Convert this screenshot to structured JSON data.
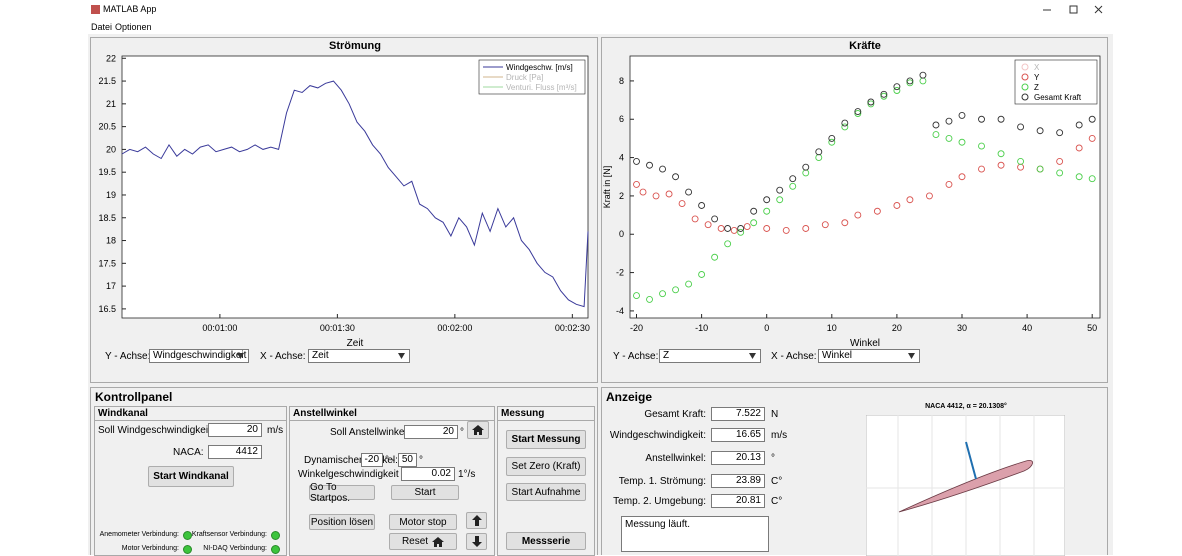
{
  "window": {
    "title": "MATLAB App"
  },
  "menu": [
    "Datei",
    "Optionen"
  ],
  "chart_data": [
    {
      "type": "line",
      "title": "Strömung",
      "xlabel": "Zeit",
      "x": [
        35,
        37,
        39,
        41,
        43,
        45,
        47,
        49,
        51,
        53,
        55,
        57,
        59,
        61,
        63,
        65,
        67,
        69,
        71,
        73,
        75,
        77,
        79,
        81,
        83,
        85,
        87,
        89,
        91,
        93,
        95,
        97,
        99,
        101,
        103,
        105,
        107,
        109,
        111,
        113,
        115,
        117,
        119,
        121,
        123,
        125,
        127,
        129,
        131,
        133,
        135,
        137,
        139,
        141,
        143,
        145,
        147,
        149,
        151,
        153,
        154
      ],
      "series": [
        {
          "name": "Windgeschw. [m/s]",
          "color": "#3a3a9a",
          "values": [
            19.9,
            20.0,
            19.95,
            20.05,
            19.9,
            19.8,
            20.1,
            19.85,
            20.0,
            19.9,
            20.05,
            20.1,
            19.95,
            20.0,
            20.05,
            19.95,
            20.0,
            20.1,
            20.0,
            20.05,
            20.0,
            20.8,
            21.3,
            21.25,
            21.4,
            21.35,
            21.45,
            21.5,
            21.3,
            21.0,
            20.6,
            20.4,
            20.1,
            19.9,
            19.6,
            19.4,
            19.2,
            19.3,
            18.8,
            18.7,
            18.5,
            18.4,
            18.1,
            18.5,
            18.3,
            17.9,
            18.6,
            18.2,
            18.7,
            18.3,
            18.5,
            18.0,
            17.8,
            17.5,
            17.3,
            17.2,
            16.9,
            16.7,
            16.6,
            16.55,
            18.2
          ]
        },
        {
          "name": "Druck [Pa]",
          "color": "#d2b48c",
          "visible": false
        },
        {
          "name": "Venturi. Fluss [m³/s]",
          "color": "#9fd89f",
          "visible": false
        }
      ],
      "xlim": [
        35,
        154
      ],
      "xticks": [
        {
          "value": 60,
          "label": "00:01:00"
        },
        {
          "value": 90,
          "label": "00:01:30"
        },
        {
          "value": 120,
          "label": "00:02:00"
        },
        {
          "value": 150,
          "label": "00:02:30"
        }
      ],
      "ylim": [
        16.3,
        22.05
      ],
      "yticks": [
        16.5,
        17,
        17.5,
        18,
        18.5,
        19,
        19.5,
        20,
        20.5,
        21,
        21.5,
        22
      ],
      "legend": "northeast"
    },
    {
      "type": "scatter",
      "title": "Kräfte",
      "xlabel": "Winkel",
      "ylabel": "Kraft in [N]",
      "series": [
        {
          "name": "X",
          "color": "#f2c4c4",
          "visible": false
        },
        {
          "name": "Y",
          "color": "#d9534f",
          "x": [
            -20,
            -19,
            -17,
            -15,
            -13,
            -11,
            -9,
            -7,
            -5,
            -3,
            0,
            3,
            6,
            9,
            12,
            14,
            17,
            20,
            22,
            25,
            28,
            30,
            33,
            36,
            39,
            42,
            45,
            48,
            50
          ],
          "values": [
            2.6,
            2.2,
            2.0,
            2.1,
            1.6,
            0.8,
            0.5,
            0.3,
            0.2,
            0.4,
            0.3,
            0.2,
            0.3,
            0.5,
            0.6,
            1.0,
            1.2,
            1.5,
            1.8,
            2.0,
            2.6,
            3.0,
            3.4,
            3.6,
            3.5,
            3.4,
            3.8,
            4.5,
            5.0
          ]
        },
        {
          "name": "Z",
          "color": "#4ccf4c",
          "x": [
            -20,
            -18,
            -16,
            -14,
            -12,
            -10,
            -8,
            -6,
            -4,
            -2,
            0,
            2,
            4,
            6,
            8,
            10,
            12,
            14,
            16,
            18,
            20,
            22,
            24,
            26,
            28,
            30,
            33,
            36,
            39,
            42,
            45,
            48,
            50
          ],
          "values": [
            -3.2,
            -3.4,
            -3.1,
            -2.9,
            -2.6,
            -2.1,
            -1.2,
            -0.5,
            0.1,
            0.6,
            1.2,
            1.8,
            2.5,
            3.2,
            4.0,
            4.8,
            5.6,
            6.3,
            6.8,
            7.2,
            7.5,
            7.9,
            8.0,
            5.2,
            5.0,
            4.8,
            4.6,
            4.2,
            3.8,
            3.4,
            3.2,
            3.0,
            2.9
          ]
        },
        {
          "name": "Gesamt Kraft",
          "color": "#333333",
          "x": [
            -20,
            -18,
            -16,
            -14,
            -12,
            -10,
            -8,
            -6,
            -4,
            -2,
            0,
            2,
            4,
            6,
            8,
            10,
            12,
            14,
            16,
            18,
            20,
            22,
            24,
            26,
            28,
            30,
            33,
            36,
            39,
            42,
            45,
            48,
            50
          ],
          "values": [
            3.8,
            3.6,
            3.4,
            3.0,
            2.2,
            1.5,
            0.8,
            0.3,
            0.3,
            1.2,
            1.8,
            2.3,
            2.9,
            3.5,
            4.3,
            5.0,
            5.8,
            6.4,
            6.9,
            7.3,
            7.7,
            8.0,
            8.3,
            5.7,
            5.9,
            6.2,
            6.0,
            6.0,
            5.6,
            5.4,
            5.3,
            5.7,
            6.0
          ]
        }
      ],
      "xlim": [
        -21,
        51.2
      ],
      "xticks": [
        -20,
        -10,
        0,
        10,
        20,
        30,
        40,
        50
      ],
      "ylim": [
        -4.37,
        9.3
      ],
      "yticks": [
        -4,
        -2,
        0,
        2,
        4,
        6,
        8
      ],
      "legend": "northeast"
    }
  ],
  "stroemung_controls": {
    "y_label": "Y - Achse:",
    "y_value": "Windgeschwindigkeit",
    "x_label": "X - Achse:",
    "x_value": "Zeit"
  },
  "kraefte_controls": {
    "y_label": "Y - Achse:",
    "y_value": "Z",
    "x_label": "X - Achse:",
    "x_value": "Winkel"
  },
  "kontrollpanel": {
    "title": "Kontrollpanel",
    "windkanal": {
      "title": "Windkanal",
      "speed_label": "Soll Windgeschwindigkeit:",
      "speed_value": "20",
      "speed_unit": "m/s",
      "naca_label": "NACA:",
      "naca_value": "4412",
      "start_button": "Start Windkanal",
      "lamps": [
        "Anemometer Verbindung:",
        "Kraftsensor Verbindung:",
        "Motor Verbindung:",
        "NI-DAQ Verbindung:"
      ]
    },
    "anstellwinkel": {
      "title": "Anstellwinkel",
      "soll_label": "Soll Anstellwinkel:",
      "soll_value": "20",
      "soll_unit": "°",
      "dyn_label": "Dynamischer Winkel:",
      "dyn_from": "-20",
      "dyn_sep": "° -",
      "dyn_to": "50",
      "dyn_unit": "°",
      "speed_label": "Winkelgeschwindigkeit :",
      "speed_value": "0.02",
      "speed_unit": "1°/s",
      "buttons": {
        "startpos": "Go To Startpos.",
        "start": "Start",
        "release": "Position lösen",
        "stop": "Motor stop",
        "reset": "Reset"
      }
    },
    "messung": {
      "title": "Messung",
      "buttons": [
        "Start Messung",
        "Set Zero (Kraft)",
        "Start Aufnahme",
        "Messserie"
      ]
    }
  },
  "anzeige": {
    "title": "Anzeige",
    "rows": [
      {
        "label": "Gesamt Kraft:",
        "value": "7.522",
        "unit": "N"
      },
      {
        "label": "Windgeschwindigkeit:",
        "value": "16.65",
        "unit": "m/s"
      },
      {
        "label": "Anstellwinkel:",
        "value": "20.13",
        "unit": "°"
      },
      {
        "label": "Temp. 1. Strömung:",
        "value": "23.89",
        "unit": "C°"
      },
      {
        "label": "Temp. 2. Umgebung:",
        "value": "20.81",
        "unit": "C°"
      }
    ],
    "status": "Messung läuft.",
    "plot_title": "NACA 4412, α = 20.1308°"
  }
}
